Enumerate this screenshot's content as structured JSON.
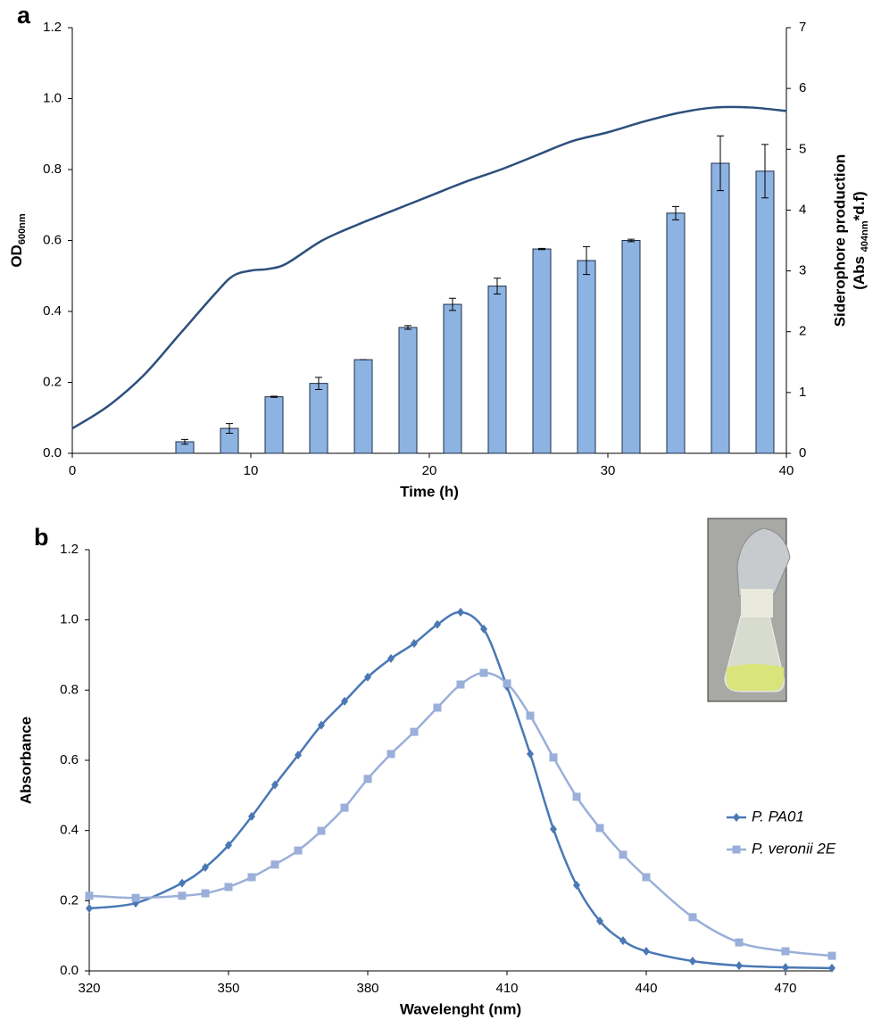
{
  "chart_data": [
    {
      "type": "combo",
      "panel_label": "a",
      "xlabel": "Time (h)",
      "ylabel": [
        "OD",
        "600nm"
      ],
      "y2label": [
        "Siderophore production",
        "(Abs ",
        "404nm",
        "*d.f)"
      ],
      "xlim": [
        0,
        40
      ],
      "xticks": [
        0,
        10,
        20,
        30,
        40
      ],
      "ylim": [
        0,
        1.2
      ],
      "yticks": [
        {
          "value": 0,
          "label": "0.0"
        },
        0.2,
        0.4,
        0.6,
        0.8,
        {
          "value": 1,
          "label": "1.0"
        },
        1.2
      ],
      "y2lim": [
        0,
        7
      ],
      "y2ticks": [
        0,
        1,
        2,
        3,
        4,
        5,
        6,
        7
      ],
      "series": [
        {
          "type": "line",
          "color": "#2c4f7c",
          "x": [
            0,
            2,
            4,
            6,
            8,
            9,
            10,
            11,
            12,
            14,
            16,
            18,
            20,
            22,
            24,
            26,
            28,
            30,
            32,
            34,
            36,
            38,
            40
          ],
          "values": [
            0.07,
            0.133,
            0.22,
            0.335,
            0.45,
            0.5,
            0.515,
            0.52,
            0.535,
            0.6,
            0.645,
            0.685,
            0.725,
            0.765,
            0.8,
            0.84,
            0.88,
            0.905,
            0.935,
            0.96,
            0.975,
            0.975,
            0.965
          ]
        },
        {
          "type": "bar",
          "axis": "y2",
          "color": "#8db3e2",
          "x": [
            6.3,
            8.8,
            11.3,
            13.8,
            16.3,
            18.8,
            21.3,
            23.8,
            26.3,
            28.8,
            31.3,
            33.8,
            36.3,
            38.8
          ],
          "values": [
            0.19,
            0.41,
            0.93,
            1.15,
            1.54,
            2.07,
            2.45,
            2.75,
            3.36,
            3.17,
            3.5,
            3.95,
            4.77,
            4.64
          ],
          "errors": [
            0.04,
            0.08,
            0.01,
            0.1,
            0,
            0.03,
            0.1,
            0.13,
            0.01,
            0.23,
            0.02,
            0.11,
            0.45,
            0.44
          ]
        }
      ]
    },
    {
      "type": "line",
      "panel_label": "b",
      "xlabel": "Wavelenght (nm)",
      "ylabel": "Absorbance",
      "xlim": [
        320,
        480
      ],
      "xticks": [
        320,
        350,
        380,
        410,
        440,
        470
      ],
      "ylim": [
        0,
        1.2
      ],
      "yticks": [
        {
          "value": 0,
          "label": "0.0"
        },
        0.2,
        0.4,
        0.6,
        0.8,
        {
          "value": 1,
          "label": "1.0"
        },
        1.2
      ],
      "legend": "right",
      "x": [
        320,
        330,
        340,
        345,
        350,
        355,
        360,
        365,
        370,
        375,
        380,
        385,
        390,
        395,
        400,
        405,
        410,
        415,
        420,
        425,
        430,
        435,
        440,
        450,
        460,
        470,
        480
      ],
      "series": [
        {
          "name": "P. PA01",
          "color": "#4a78b5",
          "marker": "diamond",
          "values": [
            0.178,
            0.193,
            0.25,
            0.295,
            0.358,
            0.44,
            0.53,
            0.615,
            0.7,
            0.768,
            0.837,
            0.89,
            0.933,
            0.987,
            1.022,
            0.974,
            0.81,
            0.618,
            0.404,
            0.244,
            0.142,
            0.086,
            0.056,
            0.028,
            0.015,
            0.01,
            0.008
          ]
        },
        {
          "name": "P. veronii 2E",
          "color": "#9aafd9",
          "marker": "square",
          "values": [
            0.214,
            0.208,
            0.214,
            0.221,
            0.239,
            0.267,
            0.303,
            0.343,
            0.399,
            0.465,
            0.547,
            0.618,
            0.681,
            0.75,
            0.816,
            0.849,
            0.819,
            0.727,
            0.608,
            0.496,
            0.407,
            0.331,
            0.267,
            0.153,
            0.081,
            0.056,
            0.043
          ]
        }
      ]
    }
  ]
}
